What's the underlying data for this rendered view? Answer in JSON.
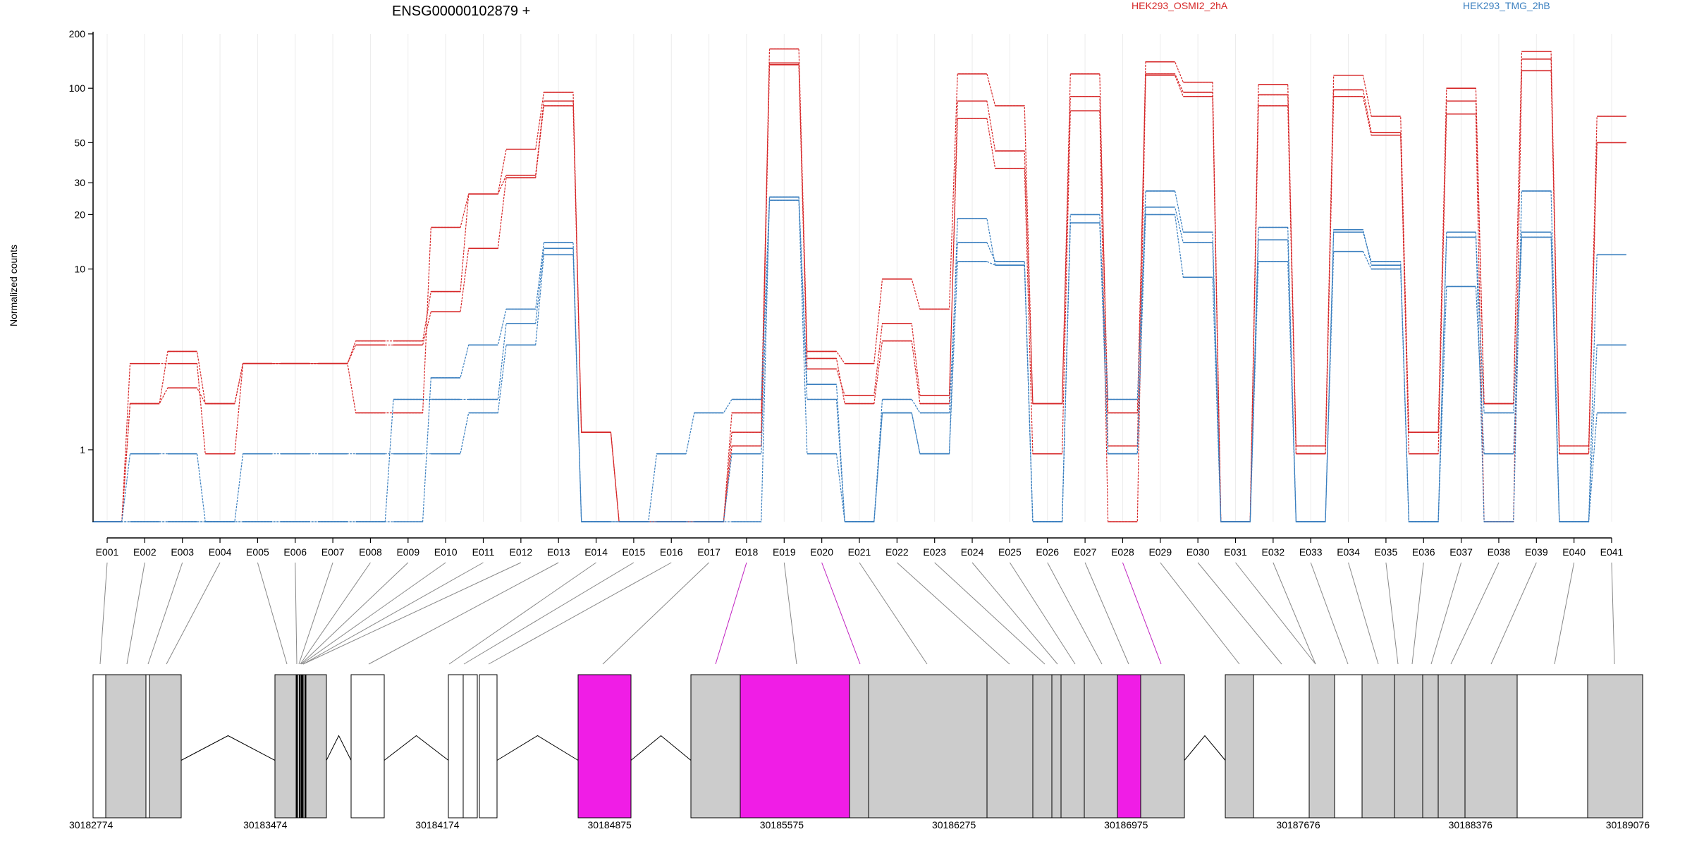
{
  "chart_data": {
    "type": "line",
    "title": "ENSG00000102879 +",
    "xlabel": "",
    "ylabel": "Normalized counts",
    "y_scale": "log",
    "ylim": [
      0.4,
      200
    ],
    "y_ticks": [
      1,
      10,
      20,
      30,
      50,
      100,
      200
    ],
    "categories": [
      "E001",
      "E002",
      "E003",
      "E004",
      "E005",
      "E006",
      "E007",
      "E008",
      "E009",
      "E010",
      "E011",
      "E012",
      "E013",
      "E014",
      "E015",
      "E016",
      "E017",
      "E018",
      "E019",
      "E020",
      "E021",
      "E022",
      "E023",
      "E024",
      "E025",
      "E026",
      "E027",
      "E028",
      "E029",
      "E030",
      "E031",
      "E032",
      "E033",
      "E034",
      "E035",
      "E036",
      "E037",
      "E038",
      "E039",
      "E040",
      "E041"
    ],
    "grid": "vertical",
    "legend": [
      {
        "name": "HEK293_OSMI2_2hA",
        "color": "#d62728",
        "placement": "top"
      },
      {
        "name": "HEK293_TMG_2hB",
        "color": "#3a7fbf",
        "placement": "top-right"
      }
    ],
    "series": [
      {
        "name": "HEK293_OSMI2_2hA",
        "group": "osmi",
        "values": [
          0.4,
          1.8,
          2.2,
          1.8,
          3.0,
          3.0,
          3.0,
          3.8,
          3.8,
          5.8,
          13,
          32,
          80,
          1.25,
          0.4,
          0.4,
          0.4,
          1.05,
          135,
          2.8,
          2.0,
          5.0,
          2.0,
          68,
          36,
          0.95,
          75,
          0.4,
          118,
          90,
          0.4,
          80,
          0.95,
          90,
          55,
          0.95,
          72,
          0.4,
          125,
          0.95,
          50
        ]
      },
      {
        "name": "HEK293_OSMI2_2hA",
        "group": "osmi",
        "values": [
          0.4,
          3.0,
          3.0,
          0.95,
          3.0,
          3.0,
          3.0,
          4.0,
          4.0,
          7.5,
          26,
          46,
          95,
          1.25,
          0.4,
          0.4,
          0.4,
          1.25,
          165,
          3.5,
          3.0,
          8.8,
          6.0,
          120,
          80,
          1.8,
          120,
          1.05,
          140,
          108,
          0.4,
          105,
          1.05,
          118,
          70,
          1.25,
          100,
          1.8,
          160,
          1.05,
          70
        ]
      },
      {
        "name": "HEK293_OSMI2_2hA",
        "group": "osmi",
        "values": [
          0.4,
          1.8,
          3.5,
          1.8,
          3.0,
          3.0,
          3.0,
          1.6,
          1.6,
          17,
          26,
          33,
          85,
          1.25,
          0.4,
          0.4,
          0.4,
          1.6,
          138,
          3.2,
          1.8,
          4.0,
          1.8,
          85,
          45,
          1.8,
          90,
          1.6,
          120,
          95,
          0.4,
          92,
          0.95,
          98,
          57,
          1.25,
          85,
          1.8,
          145,
          0.95,
          50
        ]
      },
      {
        "name": "HEK293_TMG_2hB",
        "group": "tmg",
        "values": [
          0.4,
          0.95,
          0.95,
          0.4,
          0.95,
          0.95,
          0.95,
          0.95,
          0.95,
          0.95,
          1.6,
          3.8,
          12,
          0.4,
          0.4,
          0.4,
          0.4,
          0.95,
          24,
          0.95,
          0.4,
          1.6,
          0.95,
          11,
          10.5,
          0.4,
          18,
          0.95,
          20,
          9,
          0.4,
          11,
          0.4,
          12.5,
          10,
          0.4,
          8,
          0.95,
          15,
          0.4,
          1.6
        ]
      },
      {
        "name": "HEK293_TMG_2hB",
        "group": "tmg",
        "values": [
          0.4,
          0.4,
          0.4,
          0.4,
          0.4,
          0.4,
          0.4,
          0.4,
          1.9,
          1.9,
          1.9,
          5.0,
          13,
          0.4,
          0.4,
          0.95,
          1.6,
          1.9,
          25,
          1.9,
          0.4,
          1.9,
          1.6,
          14,
          11,
          0.4,
          18,
          1.9,
          22,
          14,
          0.4,
          14.5,
          0.4,
          16,
          11,
          0.4,
          15,
          1.6,
          16,
          0.4,
          12
        ]
      },
      {
        "name": "HEK293_TMG_2hB",
        "group": "tmg",
        "values": [
          0.4,
          0.4,
          0.4,
          0.4,
          0.4,
          0.4,
          0.4,
          0.4,
          0.4,
          2.5,
          3.8,
          6.0,
          14,
          0.4,
          0.4,
          0.4,
          0.4,
          0.4,
          25,
          2.3,
          0.4,
          1.6,
          0.95,
          19,
          10.5,
          0.4,
          20,
          0.95,
          27,
          16,
          0.4,
          17,
          0.4,
          16.5,
          10.5,
          0.4,
          16,
          0.4,
          27,
          0.4,
          3.8
        ]
      }
    ],
    "genomic_axis": {
      "ticks": [
        "30182774",
        "30183474",
        "30184174",
        "30184875",
        "30185575",
        "30186275",
        "30186975",
        "30187676",
        "30188376",
        "30189076"
      ]
    }
  }
}
